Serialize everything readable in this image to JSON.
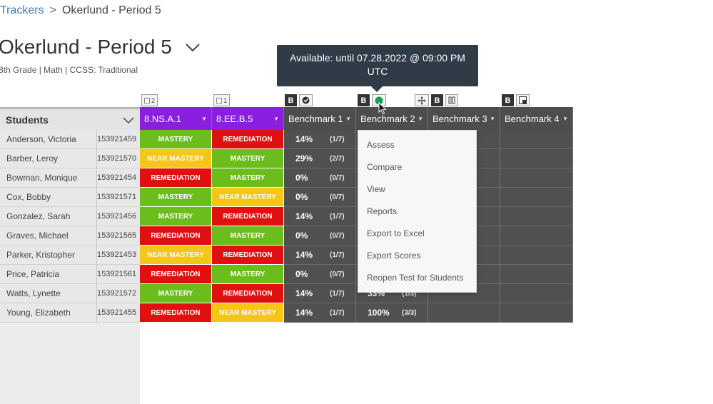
{
  "breadcrumb": {
    "parent": "Trackers",
    "separator": ">",
    "current": "Okerlund - Period 5"
  },
  "page": {
    "title": "Okerlund - Period 5",
    "subtitle": "8th Grade  |  Math  |  CCSS: Traditional"
  },
  "tooltip": {
    "line1": "Available: until 07.28.2022 @ 09:00 PM",
    "line2": "UTC"
  },
  "chips": {
    "col1_count": "2",
    "col2_count": "1",
    "bold_label": "B"
  },
  "grid": {
    "students_header": "Students",
    "columns": [
      "8.NS.A.1",
      "8.EE.B.5",
      "Benchmark 1",
      "Benchmark 2",
      "Benchmark 3",
      "Benchmark 4"
    ],
    "rows": [
      {
        "name": "Anderson, Victoria",
        "id": "153921459",
        "c1": "MASTERY",
        "c2": "REMEDIATION",
        "b1_pct": "14%",
        "b1_frac": "(1/7)",
        "b2_pct": "",
        "b2_frac": ""
      },
      {
        "name": "Barber, Leroy",
        "id": "153921570",
        "c1": "NEAR MASTERY",
        "c2": "MASTERY",
        "b1_pct": "29%",
        "b1_frac": "(2/7)",
        "b2_pct": "",
        "b2_frac": ""
      },
      {
        "name": "Bowman, Monique",
        "id": "153921454",
        "c1": "REMEDIATION",
        "c2": "MASTERY",
        "b1_pct": "0%",
        "b1_frac": "(0/7)",
        "b2_pct": "",
        "b2_frac": ""
      },
      {
        "name": "Cox, Bobby",
        "id": "153921571",
        "c1": "MASTERY",
        "c2": "NEAR MASTERY",
        "b1_pct": "0%",
        "b1_frac": "(0/7)",
        "b2_pct": "",
        "b2_frac": ""
      },
      {
        "name": "Gonzalez, Sarah",
        "id": "153921456",
        "c1": "MASTERY",
        "c2": "REMEDIATION",
        "b1_pct": "14%",
        "b1_frac": "(1/7)",
        "b2_pct": "",
        "b2_frac": ""
      },
      {
        "name": "Graves, Michael",
        "id": "153921565",
        "c1": "REMEDIATION",
        "c2": "MASTERY",
        "b1_pct": "0%",
        "b1_frac": "(0/7)",
        "b2_pct": "",
        "b2_frac": ""
      },
      {
        "name": "Parker, Kristopher",
        "id": "153921453",
        "c1": "NEAR MASTERY",
        "c2": "REMEDIATION",
        "b1_pct": "14%",
        "b1_frac": "(1/7)",
        "b2_pct": "",
        "b2_frac": ""
      },
      {
        "name": "Price, Patricia",
        "id": "153921561",
        "c1": "REMEDIATION",
        "c2": "MASTERY",
        "b1_pct": "0%",
        "b1_frac": "(0/7)",
        "b2_pct": "",
        "b2_frac": ""
      },
      {
        "name": "Watts, Lynette",
        "id": "153921572",
        "c1": "MASTERY",
        "c2": "REMEDIATION",
        "b1_pct": "14%",
        "b1_frac": "(1/7)",
        "b2_pct": "33%",
        "b2_frac": "(1/3)"
      },
      {
        "name": "Young, Elizabeth",
        "id": "153921455",
        "c1": "REMEDIATION",
        "c2": "NEAR MASTERY",
        "b1_pct": "14%",
        "b1_frac": "(1/7)",
        "b2_pct": "100%",
        "b2_frac": "(3/3)"
      }
    ]
  },
  "menu": {
    "items": [
      "Assess",
      "Compare",
      "View",
      "Reports",
      "Export to Excel",
      "Export Scores",
      "Reopen Test for Students"
    ]
  },
  "colors": {
    "mastery": "#6bbd1c",
    "near_mastery": "#f5c518",
    "remediation": "#e01010",
    "standard_header": "#8a1fe0",
    "benchmark": "#505050",
    "tooltip": "#2f3b47",
    "status_dot": "#1a9e4a"
  }
}
